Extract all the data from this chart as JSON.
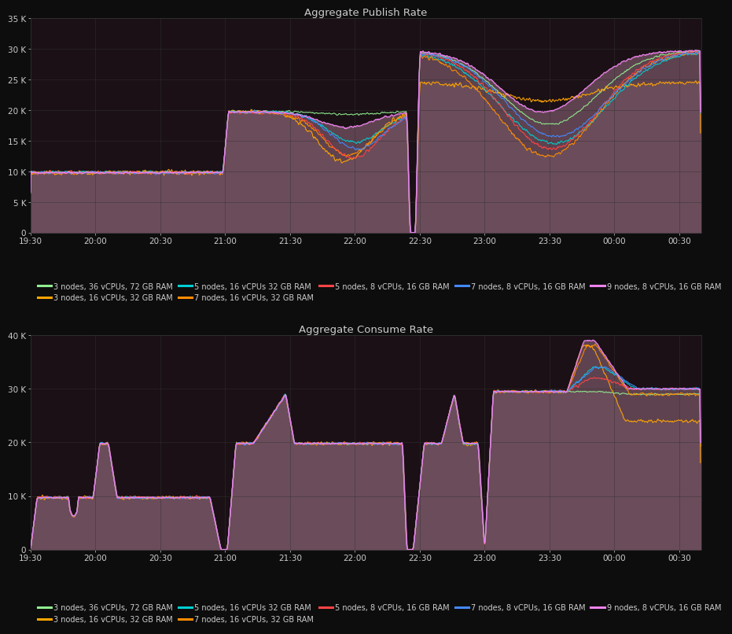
{
  "title_publish": "Aggregate Publish Rate",
  "title_consume": "Aggregate Consume Rate",
  "fig_bg": "#0d0d0d",
  "plot_bg": "#1a1015",
  "text_color": "#cccccc",
  "grid_color": "#333333",
  "fill_color": "#6b4c5a",
  "legend_labels": [
    "3 nodes, 36 vCPUs, 72 GB RAM",
    "3 nodes, 16 vCPUs, 32 GB RAM",
    "5 nodes, 16 vCPUs 32 GB RAM",
    "7 nodes, 16 vCPUs, 32 GB RAM",
    "5 nodes, 8 vCPUs, 16 GB RAM",
    "7 nodes, 8 vCPUs, 16 GB RAM",
    "9 nodes, 8 vCPUs, 16 GB RAM"
  ],
  "legend_colors": [
    "#90ee90",
    "#ffa500",
    "#00ced1",
    "#ff8c00",
    "#ff4444",
    "#4488ff",
    "#ee82ee"
  ],
  "xtick_labels": [
    "19:30",
    "20:00",
    "20:30",
    "21:00",
    "21:30",
    "22:00",
    "22:30",
    "23:00",
    "23:30",
    "00:00",
    "00:30"
  ],
  "xtick_positions": [
    0,
    30,
    60,
    90,
    120,
    150,
    180,
    210,
    240,
    270,
    300
  ],
  "pub_ytick_labels": [
    "0",
    "5 K",
    "10 K",
    "15 K",
    "20 K",
    "25 K",
    "30 K",
    "35 K"
  ],
  "pub_ytick_positions": [
    0,
    5000,
    10000,
    15000,
    20000,
    25000,
    30000,
    35000
  ],
  "con_ytick_labels": [
    "0",
    "10 K",
    "20 K",
    "30 K",
    "40 K"
  ],
  "con_ytick_positions": [
    0,
    10000,
    20000,
    30000,
    40000
  ],
  "xlim": [
    0,
    310
  ],
  "pub_ylim": [
    0,
    35000
  ],
  "con_ylim": [
    0,
    40000
  ]
}
